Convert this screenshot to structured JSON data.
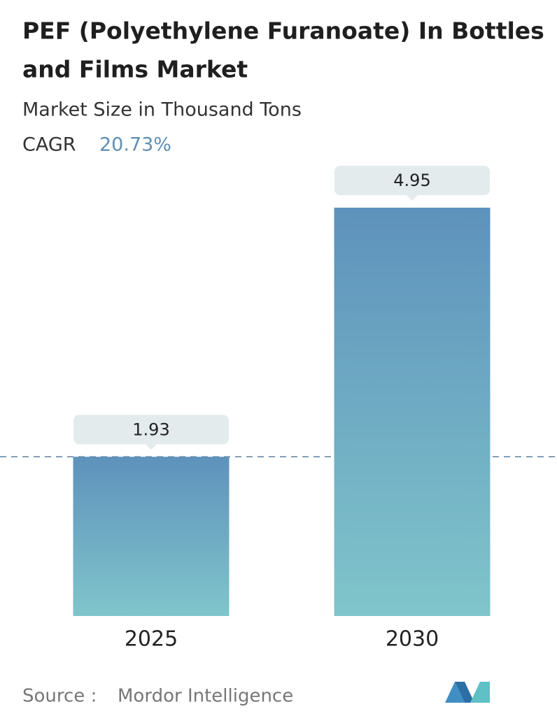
{
  "chart_data": {
    "type": "bar",
    "title": [
      "PEF (Polyethylene Furanoate) In Bottles",
      "and Films Market"
    ],
    "subtitle": "Market Size in Thousand Tons",
    "cagr_label": "CAGR",
    "cagr_value": "20.73%",
    "categories": [
      "2025",
      "2030"
    ],
    "values": [
      1.93,
      4.95
    ],
    "color_top": "#5e92bc",
    "color_bottom": "#80c5cb",
    "source_label": "Source :",
    "source": "Mordor Intelligence"
  }
}
